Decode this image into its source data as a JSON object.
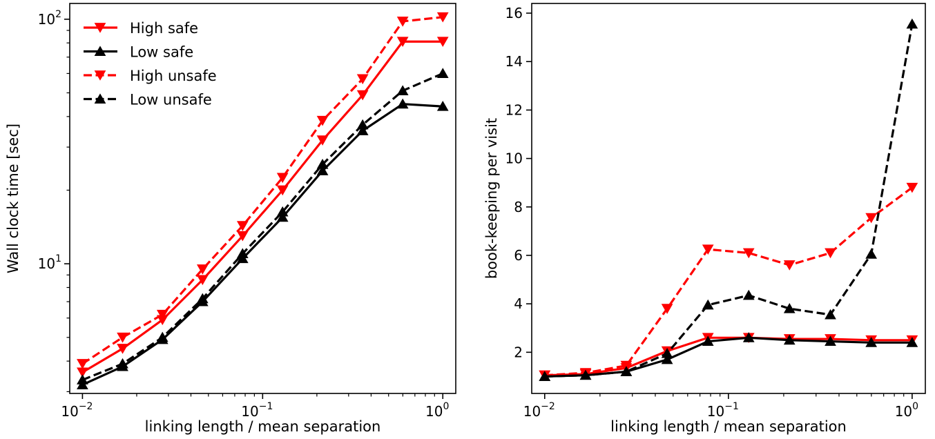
{
  "chart_data": [
    {
      "type": "line",
      "xlabel": "linking length / mean separation",
      "ylabel": "Wall clock time [sec]",
      "xscale": "log",
      "yscale": "log",
      "xlim": [
        0.0085,
        1.18
      ],
      "ylim": [
        2.95,
        116
      ],
      "xticks": [
        {
          "value": 0.01,
          "base": "10",
          "exp": "−2"
        },
        {
          "value": 0.1,
          "base": "10",
          "exp": "−1"
        },
        {
          "value": 1,
          "base": "10",
          "exp": "0"
        }
      ],
      "yticks": [
        {
          "value": 10,
          "base": "10",
          "exp": "1"
        },
        {
          "value": 100,
          "base": "10",
          "exp": "2"
        }
      ],
      "legend": "top-left",
      "grid": false,
      "x": [
        0.01,
        0.0167,
        0.0278,
        0.0464,
        0.0774,
        0.129,
        0.215,
        0.359,
        0.599,
        1.0
      ],
      "series": [
        {
          "name": "High safe",
          "color": "#ff0000",
          "linestyle": "solid",
          "marker": "triangle-down",
          "values": [
            3.6,
            4.5,
            5.9,
            8.6,
            13.0,
            20.0,
            32.0,
            49.0,
            81.0,
            81.0
          ]
        },
        {
          "name": "Low safe",
          "color": "#000000",
          "linestyle": "solid",
          "marker": "triangle-up",
          "values": [
            3.2,
            3.8,
            4.9,
            7.0,
            10.5,
            15.5,
            24.0,
            35.0,
            45.0,
            44.0
          ]
        },
        {
          "name": "High unsafe",
          "color": "#ff0000",
          "linestyle": "dashed",
          "marker": "triangle-down",
          "values": [
            3.9,
            5.0,
            6.2,
            9.5,
            14.3,
            22.5,
            38.5,
            57.0,
            98.0,
            102.0
          ]
        },
        {
          "name": "Low unsafe",
          "color": "#000000",
          "linestyle": "dashed",
          "marker": "triangle-up",
          "values": [
            3.35,
            3.9,
            5.0,
            7.2,
            11.0,
            16.3,
            25.5,
            37.0,
            51.0,
            60.0
          ]
        }
      ]
    },
    {
      "type": "line",
      "xlabel": "linking length / mean separation",
      "ylabel": "book-keeping per visit",
      "xscale": "log",
      "yscale": "linear",
      "xlim": [
        0.0085,
        1.18
      ],
      "ylim": [
        0.3,
        16.4
      ],
      "xticks": [
        {
          "value": 0.01,
          "base": "10",
          "exp": "−2"
        },
        {
          "value": 0.1,
          "base": "10",
          "exp": "−1"
        },
        {
          "value": 1,
          "base": "10",
          "exp": "0"
        }
      ],
      "yticks": [
        {
          "value": 2,
          "label": "2"
        },
        {
          "value": 4,
          "label": "4"
        },
        {
          "value": 6,
          "label": "6"
        },
        {
          "value": 8,
          "label": "8"
        },
        {
          "value": 10,
          "label": "10"
        },
        {
          "value": 12,
          "label": "12"
        },
        {
          "value": 14,
          "label": "14"
        },
        {
          "value": 16,
          "label": "16"
        }
      ],
      "grid": false,
      "x": [
        0.01,
        0.0167,
        0.0278,
        0.0464,
        0.0774,
        0.129,
        0.215,
        0.359,
        0.599,
        1.0
      ],
      "series": [
        {
          "color": "#ff0000",
          "linestyle": "solid",
          "marker": "triangle-down",
          "values": [
            1.05,
            1.1,
            1.35,
            2.05,
            2.6,
            2.6,
            2.55,
            2.55,
            2.5,
            2.5
          ]
        },
        {
          "color": "#000000",
          "linestyle": "solid",
          "marker": "triangle-up",
          "values": [
            1.0,
            1.05,
            1.2,
            1.7,
            2.45,
            2.6,
            2.5,
            2.45,
            2.4,
            2.4
          ]
        },
        {
          "color": "#ff0000",
          "linestyle": "dashed",
          "marker": "triangle-down",
          "values": [
            1.05,
            1.15,
            1.45,
            3.8,
            6.25,
            6.1,
            5.6,
            6.1,
            7.55,
            8.8
          ]
        },
        {
          "color": "#000000",
          "linestyle": "dashed",
          "marker": "triangle-up",
          "values": [
            1.0,
            1.05,
            1.2,
            1.95,
            3.95,
            4.35,
            3.8,
            3.55,
            6.05,
            15.55
          ]
        }
      ]
    }
  ]
}
